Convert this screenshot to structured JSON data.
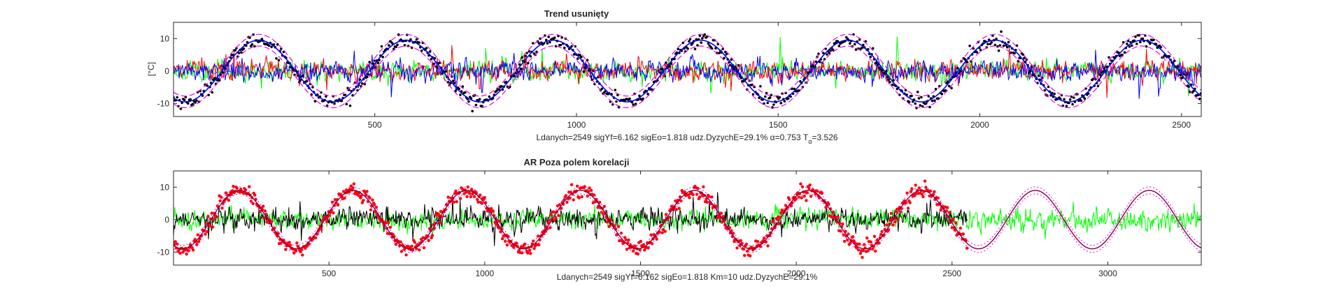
{
  "chart_data": [
    {
      "type": "line",
      "title": "Trend usunięty",
      "ylabel": "[°C]",
      "caption": "Ldanych=2549 sigYf=6.162 sigEo=1.818 udz.DyzychE=29.1% α=0.753 T",
      "caption_subscript": "α",
      "caption_suffix": "=3.526",
      "xlim": [
        1,
        2549
      ],
      "ylim": [
        -14,
        15
      ],
      "xticks": [
        500,
        1000,
        1500,
        2000,
        2500
      ],
      "yticks": [
        -10,
        0,
        10
      ],
      "period": 365,
      "phase_min_day": 30,
      "amplitude": 9.5,
      "band_offset": 1.8,
      "noise_sd": 1.8,
      "colors": {
        "points": "#000000",
        "model": "#0000ff",
        "bands": "#e600e6",
        "residual_red": "#ff0000",
        "residual_blue": "#0000ff",
        "residual_green": "#00ff00"
      },
      "grid": false
    },
    {
      "type": "line",
      "title": "AR Poza polem korelacji",
      "caption": "Ldanych=2549 sigYf=6.162 sigEo=1.818 Km=10 udz.DyzychE=29.1%",
      "xlim": [
        1,
        3300
      ],
      "data_end": 2549,
      "ylim": [
        -14,
        15
      ],
      "xticks": [
        500,
        1000,
        1500,
        2000,
        2500,
        3000
      ],
      "yticks": [
        -10,
        0,
        10
      ],
      "period": 365,
      "phase_min_day": 30,
      "amplitude": 9.0,
      "band_offset": 1.8,
      "noise_sd": 1.8,
      "colors": {
        "points": "#ff0000",
        "model": "#800040",
        "bands": "#e600e6",
        "residual_black": "#000000",
        "residual_green": "#00ff00"
      },
      "grid": false
    }
  ]
}
